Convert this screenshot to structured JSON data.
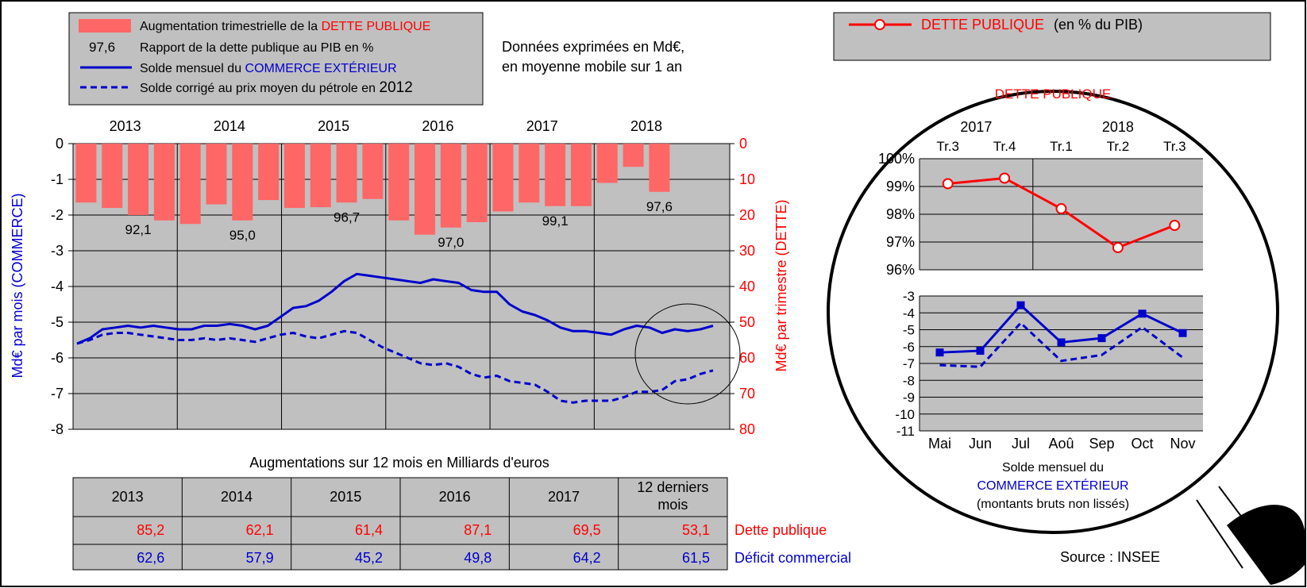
{
  "legend": {
    "bar_label": "Augmentation trimestrielle de la ",
    "bar_label_red": "DETTE PUBLIQUE",
    "ratio_sample": "97,6",
    "ratio_label": "Rapport de la dette publique au PIB en %",
    "line_label": "Solde mensuel du ",
    "line_label_blue": "COMMERCE EXTÉRIEUR",
    "dash_label": "Solde corrigé au prix moyen du pétrole en ",
    "dash_year": "2012"
  },
  "note": {
    "line1": "Données exprimées en Md€,",
    "line2": "en moyenne mobile sur 1 an"
  },
  "colors": {
    "bar": "#ff6666",
    "red": "#ff0000",
    "blue": "#0000cc",
    "plot_bg": "#c0c0c0"
  },
  "chart_data": [
    {
      "type": "bar+line",
      "title": "",
      "year_labels": [
        "2013",
        "2014",
        "2015",
        "2016",
        "2017",
        "2018"
      ],
      "ylabel_left": "Md€ par mois (COMMERCE)",
      "ylabel_right": "Md€ par trimestre (DETTE)",
      "yticks_left": [
        "0",
        "-1",
        "-2",
        "-3",
        "-4",
        "-5",
        "-6",
        "-7",
        "-8"
      ],
      "yticks_right": [
        "0",
        "10",
        "20",
        "30",
        "40",
        "50",
        "60",
        "70",
        "80"
      ],
      "ylim_left": [
        -8,
        0
      ],
      "ylim_right": [
        80,
        0
      ],
      "bar_series": {
        "name": "Augmentation trimestrielle de la DETTE PUBLIQUE",
        "values": [
          16.5,
          18,
          20,
          21.5,
          22.5,
          17,
          21.5,
          15.8,
          18,
          17.8,
          16.5,
          15.5,
          21.5,
          25.5,
          23.5,
          22,
          19,
          16.5,
          17.5,
          17.5,
          11,
          6.5,
          13.5
        ]
      },
      "ratio_labels": [
        {
          "bar_index": 2,
          "text": "92,1"
        },
        {
          "bar_index": 6,
          "text": "95,0"
        },
        {
          "bar_index": 10,
          "text": "96,7"
        },
        {
          "bar_index": 14,
          "text": "97,0"
        },
        {
          "bar_index": 18,
          "text": "99,1"
        },
        {
          "bar_index": 22,
          "text": "97,6"
        }
      ],
      "line_series": [
        {
          "name": "Solde mensuel du COMMERCE EXTÉRIEUR",
          "style": "solid",
          "values": [
            -5.6,
            -5.45,
            -5.2,
            -5.15,
            -5.1,
            -5.15,
            -5.1,
            -5.15,
            -5.2,
            -5.2,
            -5.1,
            -5.1,
            -5.05,
            -5.1,
            -5.2,
            -5.1,
            -4.85,
            -4.6,
            -4.55,
            -4.4,
            -4.15,
            -3.85,
            -3.65,
            -3.7,
            -3.75,
            -3.8,
            -3.85,
            -3.9,
            -3.8,
            -3.85,
            -3.9,
            -4.1,
            -4.15,
            -4.15,
            -4.5,
            -4.7,
            -4.8,
            -4.95,
            -5.15,
            -5.25,
            -5.25,
            -5.3,
            -5.35,
            -5.2,
            -5.1,
            -5.15,
            -5.3,
            -5.2,
            -5.25,
            -5.2,
            -5.1
          ]
        },
        {
          "name": "Solde corrigé au prix moyen du pétrole en 2012",
          "style": "dashed",
          "values": [
            -5.6,
            -5.5,
            -5.35,
            -5.3,
            -5.3,
            -5.35,
            -5.4,
            -5.45,
            -5.5,
            -5.5,
            -5.45,
            -5.5,
            -5.45,
            -5.5,
            -5.55,
            -5.45,
            -5.35,
            -5.3,
            -5.4,
            -5.45,
            -5.35,
            -5.25,
            -5.3,
            -5.5,
            -5.7,
            -5.85,
            -6.0,
            -6.15,
            -6.2,
            -6.15,
            -6.25,
            -6.45,
            -6.55,
            -6.5,
            -6.65,
            -6.7,
            -6.75,
            -6.95,
            -7.2,
            -7.25,
            -7.2,
            -7.2,
            -7.2,
            -7.1,
            -6.95,
            -6.95,
            -6.9,
            -6.65,
            -6.6,
            -6.45,
            -6.35
          ]
        }
      ]
    },
    {
      "type": "line",
      "title": "DETTE PUBLIQUE",
      "categories": [
        "Tr.3",
        "Tr.4",
        "Tr.1",
        "Tr.2",
        "Tr.3"
      ],
      "years": [
        {
          "label": "2017",
          "span": [
            0,
            1
          ]
        },
        {
          "label": "2018",
          "span": [
            2,
            4
          ]
        }
      ],
      "yticks": [
        "100%",
        "99%",
        "98%",
        "97%",
        "96%"
      ],
      "ylim": [
        96,
        100
      ],
      "series": [
        {
          "name": "DETTE PUBLIQUE (en % du PIB)",
          "values": [
            99.1,
            99.3,
            98.2,
            96.8,
            97.6
          ]
        }
      ]
    },
    {
      "type": "line",
      "title": "Solde mensuel du COMMERCE EXTÉRIEUR (montants bruts non lissés)",
      "categories": [
        "Mai",
        "Jun",
        "Jul",
        "Aoû",
        "Sep",
        "Oct",
        "Nov"
      ],
      "yticks": [
        "-3",
        "-4",
        "-5",
        "-6",
        "-7",
        "-8",
        "-9",
        "-10",
        "-11"
      ],
      "ylim": [
        -11,
        -3
      ],
      "series": [
        {
          "name": "Solde mensuel",
          "style": "solid",
          "values": [
            -6.35,
            -6.25,
            -3.55,
            -5.75,
            -5.5,
            -4.05,
            -5.2
          ]
        },
        {
          "name": "Solde corrigé",
          "style": "dashed",
          "values": [
            -7.1,
            -7.2,
            -4.6,
            -6.85,
            -6.5,
            -4.85,
            -6.65
          ]
        }
      ]
    }
  ],
  "zoom_title_red": "DETTE PUBLIQUE",
  "zoom_caption": {
    "line1": "Solde mensuel du",
    "line2": "COMMERCE EXTÉRIEUR",
    "line3": "(montants bruts non lissés)"
  },
  "right_legend": {
    "red_text": "DETTE PUBLIQUE",
    "suffix": "(en % du PIB)"
  },
  "table": {
    "title": "Augmentations sur 12 mois en Milliards d'euros",
    "headers": [
      "2013",
      "2014",
      "2015",
      "2016",
      "2017",
      "12 derniers",
      "mois"
    ],
    "dette_values": [
      "85,2",
      "62,1",
      "61,4",
      "87,1",
      "69,5",
      "53,1"
    ],
    "deficit_values": [
      "62,6",
      "57,9",
      "45,2",
      "49,8",
      "64,2",
      "61,5"
    ],
    "dette_label": "Dette publique",
    "deficit_label": "Déficit commercial"
  },
  "source": "Source : INSEE"
}
